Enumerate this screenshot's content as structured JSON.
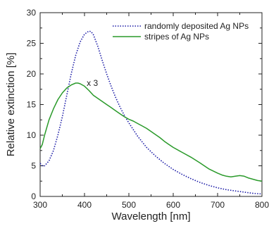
{
  "chart_data": {
    "type": "line",
    "xlabel": "Wavelength [nm]",
    "ylabel": "Relative extinction [%]",
    "xlim": [
      300,
      800
    ],
    "ylim": [
      0,
      30
    ],
    "xticks": [
      300,
      400,
      500,
      600,
      700,
      800
    ],
    "yticks": [
      0,
      5,
      10,
      15,
      20,
      25,
      30
    ],
    "grid": false,
    "legend_position": "top-right",
    "annotations": [
      {
        "text": "x 3",
        "x": 405,
        "y": 18.5
      }
    ],
    "series": [
      {
        "name": "randomly deposited Ag NPs",
        "color": "#1a1aa6",
        "style": "dotted",
        "x": [
          300,
          305,
          310,
          320,
          330,
          340,
          350,
          360,
          370,
          380,
          390,
          400,
          410,
          415,
          420,
          430,
          440,
          450,
          460,
          470,
          480,
          490,
          500,
          520,
          540,
          560,
          580,
          600,
          620,
          640,
          660,
          680,
          700,
          720,
          740,
          760,
          780,
          800
        ],
        "values": [
          5.4,
          5.0,
          5.0,
          5.8,
          7.5,
          10.0,
          13.0,
          16.5,
          20.0,
          23.0,
          25.2,
          26.5,
          27.0,
          26.9,
          26.4,
          24.5,
          22.2,
          20.0,
          18.0,
          16.2,
          14.6,
          13.2,
          12.0,
          9.8,
          8.0,
          6.6,
          5.4,
          4.4,
          3.6,
          2.9,
          2.3,
          1.8,
          1.4,
          1.1,
          0.9,
          0.7,
          0.5,
          0.4
        ]
      },
      {
        "name": "stripes of Ag NPs",
        "color": "#2a9a2a",
        "style": "solid",
        "x": [
          300,
          305,
          310,
          320,
          330,
          340,
          350,
          360,
          370,
          380,
          385,
          390,
          400,
          410,
          420,
          430,
          440,
          450,
          460,
          470,
          480,
          490,
          500,
          510,
          520,
          530,
          540,
          550,
          560,
          570,
          580,
          590,
          600,
          620,
          640,
          660,
          680,
          700,
          710,
          720,
          730,
          740,
          750,
          760,
          770,
          780,
          790,
          800
        ],
        "values": [
          7.8,
          8.5,
          10.0,
          12.5,
          14.3,
          15.8,
          16.9,
          17.7,
          18.2,
          18.5,
          18.5,
          18.4,
          18.0,
          17.3,
          16.5,
          16.0,
          15.5,
          15.0,
          14.5,
          14.0,
          13.5,
          13.0,
          12.6,
          12.3,
          11.9,
          11.5,
          11.1,
          10.6,
          10.1,
          9.6,
          9.0,
          8.5,
          8.0,
          7.2,
          6.4,
          5.5,
          4.5,
          3.8,
          3.5,
          3.3,
          3.2,
          3.3,
          3.4,
          3.3,
          3.0,
          2.8,
          2.6,
          2.5
        ]
      }
    ]
  }
}
